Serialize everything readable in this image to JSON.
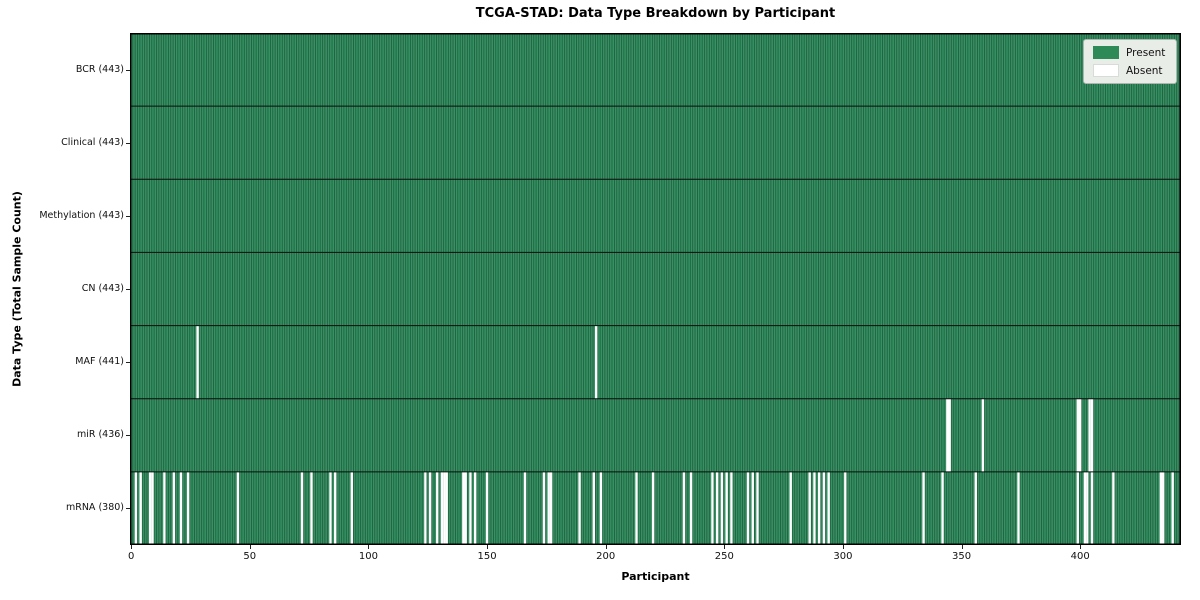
{
  "title": "TCGA-STAD: Data Type Breakdown by Participant",
  "chart_data": {
    "type": "heatmap",
    "title": "TCGA-STAD: Data Type Breakdown by Participant",
    "xlabel": "Participant",
    "ylabel": "Data Type (Total Sample Count)",
    "n_participants": 443,
    "x_ticks": [
      0,
      50,
      100,
      150,
      200,
      250,
      300,
      350,
      400
    ],
    "legend_position": "upper right",
    "grid": "row separators only",
    "legend": [
      {
        "label": "Present",
        "color": "#2e8b57"
      },
      {
        "label": "Absent",
        "color": "#ffffff"
      }
    ],
    "colors": {
      "present": "#2e8b57",
      "present_base": "#359263",
      "bar_edge": "rgba(0,0,0,0.42)",
      "absent": "#ffffff",
      "row_line": "#0d0d0d",
      "plot_border": "#000000"
    },
    "rows": [
      {
        "label": "BCR (443)",
        "name": "BCR",
        "total": 443,
        "absent_participants": []
      },
      {
        "label": "Clinical (443)",
        "name": "Clinical",
        "total": 443,
        "absent_participants": []
      },
      {
        "label": "Methylation (443)",
        "name": "Methylation",
        "total": 443,
        "absent_participants": []
      },
      {
        "label": "CN (443)",
        "name": "CN",
        "total": 443,
        "absent_participants": []
      },
      {
        "label": "MAF (441)",
        "name": "MAF",
        "total": 441,
        "absent_participants": [
          28,
          196
        ]
      },
      {
        "label": "miR (436)",
        "name": "miR",
        "total": 436,
        "absent_participants": [
          344,
          345,
          359,
          399,
          400,
          404,
          405
        ]
      },
      {
        "label": "mRNA (380)",
        "name": "mRNA",
        "total": 380,
        "absent_participants": [
          2,
          4,
          8,
          9,
          14,
          18,
          21,
          24,
          45,
          72,
          76,
          84,
          86,
          93,
          124,
          126,
          129,
          131,
          132,
          133,
          140,
          141,
          143,
          145,
          150,
          166,
          174,
          176,
          177,
          189,
          195,
          198,
          213,
          220,
          233,
          236,
          245,
          247,
          249,
          251,
          253,
          260,
          262,
          264,
          278,
          286,
          288,
          290,
          292,
          294,
          301,
          334,
          342,
          356,
          374,
          399,
          402,
          403,
          405,
          414,
          434,
          435,
          439
        ]
      }
    ]
  }
}
